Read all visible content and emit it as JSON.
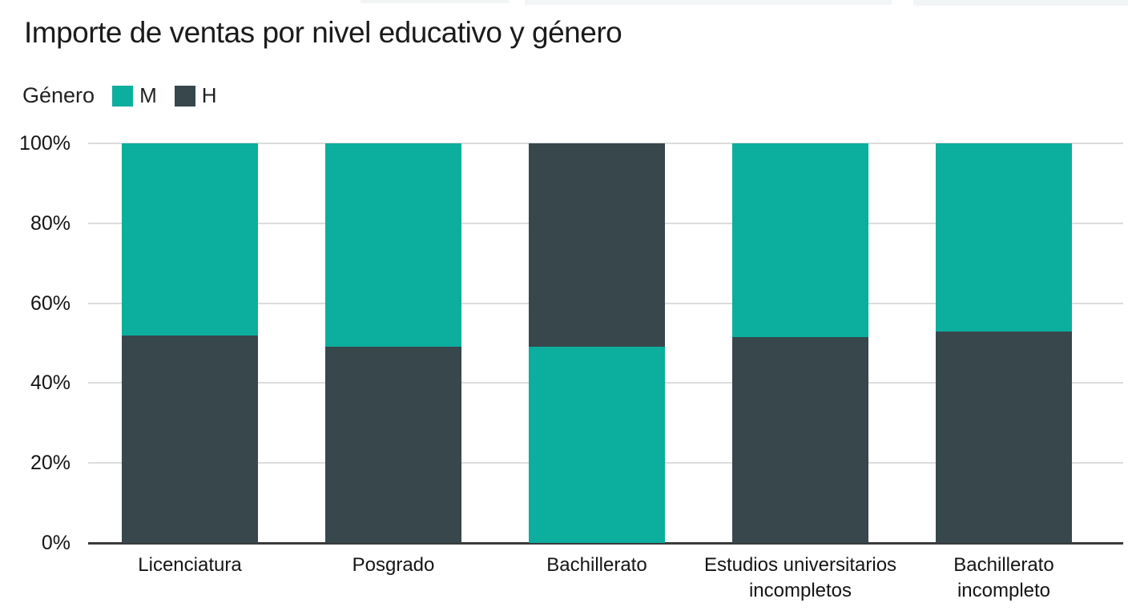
{
  "title": "Importe de ventas por nivel educativo y género",
  "legend": {
    "label": "Género",
    "items": [
      {
        "name": "M",
        "color": "#0CAE9D"
      },
      {
        "name": "H",
        "color": "#37474C"
      }
    ]
  },
  "colors": {
    "female_teal": "#0CAE9D",
    "male_slate": "#37474C",
    "gridline": "#dcdcdc",
    "axis_line": "#3a3a3a",
    "text": "#151515"
  },
  "chart_data": {
    "type": "bar",
    "variant": "stacked-100-percent-column",
    "title": "Importe de ventas por nivel educativo y género",
    "legend_title": "Género",
    "legend_position": "top-left",
    "grid": true,
    "xlabel": "",
    "ylabel": "",
    "categories": [
      "Licenciatura",
      "Posgrado",
      "Bachillerato",
      "Estudios universitarios\nincompletos",
      "Bachillerato\nincompleto"
    ],
    "series": [
      {
        "name": "M",
        "color": "#0CAE9D",
        "values": [
          48,
          51,
          49,
          48.5,
          47
        ]
      },
      {
        "name": "H",
        "color": "#37474C",
        "values": [
          52,
          49,
          51,
          51.5,
          53
        ]
      }
    ],
    "bars": [
      {
        "category": "Licenciatura",
        "segments_bottom_to_top": [
          {
            "series": "H",
            "value": 52
          },
          {
            "series": "M",
            "value": 48
          }
        ]
      },
      {
        "category": "Posgrado",
        "segments_bottom_to_top": [
          {
            "series": "H",
            "value": 49
          },
          {
            "series": "M",
            "value": 51
          }
        ]
      },
      {
        "category": "Bachillerato",
        "segments_bottom_to_top": [
          {
            "series": "M",
            "value": 49
          },
          {
            "series": "H",
            "value": 51
          }
        ]
      },
      {
        "category": "Estudios universitarios incompletos",
        "segments_bottom_to_top": [
          {
            "series": "H",
            "value": 51.5
          },
          {
            "series": "M",
            "value": 48.5
          }
        ]
      },
      {
        "category": "Bachillerato incompleto",
        "segments_bottom_to_top": [
          {
            "series": "H",
            "value": 53
          },
          {
            "series": "M",
            "value": 47
          }
        ]
      }
    ],
    "y_axis": {
      "min": 0,
      "max": 100,
      "tick_values": [
        0,
        20,
        40,
        60,
        80,
        100
      ],
      "tick_labels": [
        "0%",
        "20%",
        "40%",
        "60%",
        "80%",
        "100%"
      ]
    }
  }
}
